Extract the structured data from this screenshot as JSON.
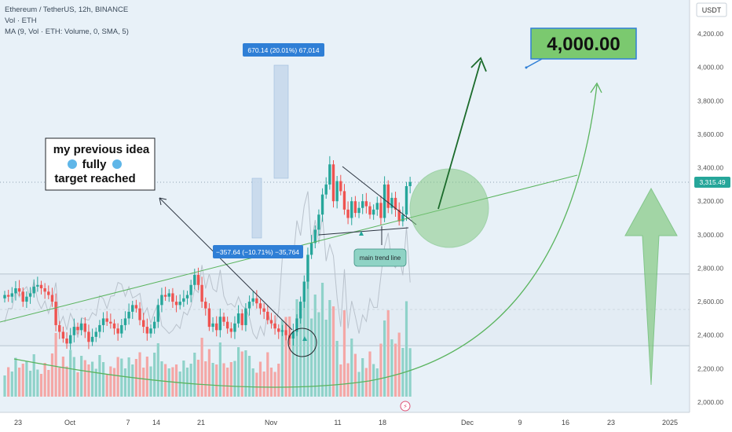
{
  "legend": {
    "title": "Ethereum / TetherUS, 12h, BINANCE",
    "vol": "Vol · ETH",
    "ma": "MA (9, Vol · ETH: Volume, 0, SMA, 5)"
  },
  "currency": "USDT",
  "current_price": "3,315.49",
  "target_label": "4,000.00",
  "idea_note": [
    "my previous idea",
    "fully",
    "target reached"
  ],
  "trend_label": "main trend line",
  "measure_up": "670.14 (20.01%) 67,014",
  "measure_down": "−357.64 (−10.71%) −35,764",
  "colors": {
    "up": "#26a69a",
    "down": "#ef5350",
    "green": "#4caf50",
    "dark_green": "#1b6b2b",
    "blue_tag": "#2f7fd6",
    "target_bg": "#7bc96f"
  },
  "chart_data": {
    "type": "candlestick",
    "y_ticks": [
      "4,200.00",
      "4,000.00",
      "3,800.00",
      "3,600.00",
      "3,400.00",
      "3,200.00",
      "3,000.00",
      "2,800.00",
      "2,600.00",
      "2,400.00",
      "2,200.00",
      "2,000.00"
    ],
    "x_ticks": [
      "23",
      "Oct",
      "7",
      "14",
      "21",
      "Nov",
      "11",
      "18",
      "Dec",
      "9",
      "16",
      "23",
      "2025"
    ],
    "ylim": [
      1950,
      4300
    ],
    "candles_close": [
      2640,
      2630,
      2650,
      2680,
      2660,
      2600,
      2630,
      2650,
      2690,
      2700,
      2680,
      2660,
      2640,
      2600,
      2460,
      2420,
      2380,
      2350,
      2400,
      2450,
      2430,
      2470,
      2420,
      2360,
      2390,
      2420,
      2460,
      2500,
      2480,
      2470,
      2440,
      2410,
      2460,
      2500,
      2540,
      2580,
      2560,
      2490,
      2450,
      2410,
      2440,
      2480,
      2580,
      2640,
      2630,
      2650,
      2600,
      2580,
      2600,
      2620,
      2640,
      2700,
      2760,
      2700,
      2600,
      2560,
      2450,
      2470,
      2430,
      2510,
      2480,
      2440,
      2420,
      2470,
      2530,
      2460,
      2560,
      2600,
      2620,
      2590,
      2560,
      2540,
      2490,
      2470,
      2440,
      2420,
      2430,
      2400,
      2380,
      2420,
      2500,
      2600,
      2720,
      2880,
      2950,
      3030,
      3120,
      3240,
      3300,
      3420,
      3200,
      3320,
      3260,
      3150,
      3100,
      3200,
      3130,
      3160,
      3200,
      3170,
      3120,
      3150,
      3190,
      3100,
      3300,
      3160,
      3220,
      3150,
      3080,
      3120,
      3290,
      3315
    ]
  }
}
